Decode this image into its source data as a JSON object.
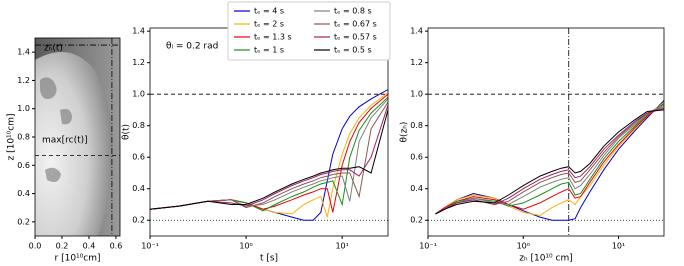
{
  "chart_data": [
    {
      "type": "image",
      "xlabel": "r [10¹⁰cm]",
      "ylabel": "z [10¹⁰cm]",
      "xlim": [
        0,
        0.63
      ],
      "ylim": [
        0.1,
        1.5
      ],
      "xticks": [
        {
          "value": 0,
          "label": "0.0"
        },
        0.2,
        0.4,
        0.6
      ],
      "yticks": [
        0.2,
        0.4,
        0.6,
        0.8,
        {
          "value": 1,
          "label": "1.0"
        },
        1.2,
        1.4
      ],
      "hlines": [
        {
          "value": 1.45,
          "style": "dashdot"
        },
        {
          "value": 0.67,
          "style": "dashed"
        }
      ],
      "vlines": [
        {
          "value": 0.57,
          "style": "dashdot"
        }
      ],
      "annotations": [
        "zₕ(t)",
        "max[rc(t)]"
      ]
    },
    {
      "type": "line",
      "log_x": true,
      "xlabel": "t [s]",
      "ylabel": "θ(t)",
      "xlim": [
        0.1,
        30
      ],
      "ylim": [
        0.1,
        1.42
      ],
      "xticks": [
        {
          "value": 0.1,
          "label": "10⁻¹"
        },
        {
          "value": 1,
          "label": "10⁰"
        },
        {
          "value": 10,
          "label": "10¹"
        }
      ],
      "yticks": [
        0.2,
        0.4,
        0.6,
        0.8,
        {
          "value": 1,
          "label": "1.0"
        },
        1.2,
        1.4
      ],
      "hlines": [
        {
          "value": 1,
          "style": "dashed"
        },
        {
          "value": 0.2,
          "style": "dotted"
        }
      ],
      "annotations": [
        "θₗ = 0.2 rad"
      ],
      "legend": "top",
      "x": [
        0.1,
        0.2,
        0.4,
        0.7,
        1,
        1.5,
        2,
        3,
        4,
        5,
        6,
        7,
        8,
        10,
        12,
        15,
        20,
        30
      ],
      "series": [
        {
          "name": "tₑ = 4 s",
          "color": "#0000cc",
          "values": [
            0.27,
            0.29,
            0.32,
            0.33,
            0.31,
            0.27,
            0.25,
            0.22,
            0.2,
            0.2,
            0.25,
            0.45,
            0.62,
            0.78,
            0.86,
            0.92,
            0.97,
            1.03
          ]
        },
        {
          "name": "tₑ = 2 s",
          "color": "#ffb000",
          "values": [
            0.27,
            0.29,
            0.32,
            0.33,
            0.31,
            0.27,
            0.25,
            0.24,
            0.3,
            0.33,
            0.35,
            0.22,
            0.4,
            0.62,
            0.75,
            0.85,
            0.93,
            1.01
          ]
        },
        {
          "name": "tₑ = 1.3 s",
          "color": "#e8000b",
          "values": [
            0.27,
            0.29,
            0.32,
            0.33,
            0.31,
            0.27,
            0.29,
            0.33,
            0.36,
            0.38,
            0.4,
            0.4,
            0.25,
            0.55,
            0.7,
            0.82,
            0.91,
            1.0
          ]
        },
        {
          "name": "tₑ = 1 s",
          "color": "#1a8f1a",
          "values": [
            0.27,
            0.29,
            0.32,
            0.33,
            0.31,
            0.26,
            0.3,
            0.35,
            0.38,
            0.41,
            0.43,
            0.44,
            0.45,
            0.3,
            0.6,
            0.77,
            0.88,
            0.98
          ]
        },
        {
          "name": "tₑ = 0.8 s",
          "color": "#808080",
          "values": [
            0.27,
            0.29,
            0.32,
            0.33,
            0.29,
            0.3,
            0.33,
            0.38,
            0.41,
            0.43,
            0.45,
            0.46,
            0.47,
            0.48,
            0.32,
            0.7,
            0.85,
            0.97
          ]
        },
        {
          "name": "tₑ = 0.67 s",
          "color": "#8c564b",
          "values": [
            0.27,
            0.29,
            0.32,
            0.33,
            0.28,
            0.31,
            0.35,
            0.4,
            0.43,
            0.45,
            0.47,
            0.48,
            0.49,
            0.5,
            0.5,
            0.35,
            0.78,
            0.95
          ]
        },
        {
          "name": "tₑ = 0.57 s",
          "color": "#a0206a",
          "values": [
            0.27,
            0.29,
            0.32,
            0.31,
            0.29,
            0.33,
            0.37,
            0.42,
            0.45,
            0.47,
            0.49,
            0.5,
            0.51,
            0.52,
            0.52,
            0.48,
            0.6,
            0.93
          ]
        },
        {
          "name": "tₑ = 0.5 s",
          "color": "#000000",
          "values": [
            0.27,
            0.29,
            0.32,
            0.3,
            0.3,
            0.34,
            0.38,
            0.43,
            0.46,
            0.48,
            0.5,
            0.51,
            0.52,
            0.53,
            0.53,
            0.54,
            0.5,
            0.9
          ]
        }
      ]
    },
    {
      "type": "line",
      "log_x": true,
      "xlabel": "zₕ [10¹⁰ cm]",
      "ylabel": "θ(zₕ)",
      "xlim": [
        0.1,
        30
      ],
      "ylim": [
        0.1,
        1.42
      ],
      "xticks": [
        {
          "value": 0.1,
          "label": "10⁻¹"
        },
        {
          "value": 1,
          "label": "10⁰"
        },
        {
          "value": 10,
          "label": "10¹"
        }
      ],
      "yticks": [
        0.2,
        0.4,
        0.6,
        0.8,
        {
          "value": 1,
          "label": "1.0"
        },
        1.2,
        1.4
      ],
      "hlines": [
        {
          "value": 1,
          "style": "dashed"
        },
        {
          "value": 0.2,
          "style": "dotted"
        }
      ],
      "vlines": [
        {
          "value": 3,
          "style": "dashdot"
        }
      ],
      "x": [
        0.12,
        0.15,
        0.2,
        0.3,
        0.5,
        0.7,
        1,
        1.5,
        2,
        2.5,
        3,
        3.5,
        4,
        5,
        7,
        10,
        15,
        20,
        30
      ],
      "series": [
        {
          "color": "#0000cc",
          "values": [
            0.24,
            0.28,
            0.33,
            0.37,
            0.34,
            0.3,
            0.26,
            0.22,
            0.2,
            0.2,
            0.2,
            0.21,
            0.28,
            0.38,
            0.52,
            0.65,
            0.77,
            0.85,
            0.96
          ]
        },
        {
          "color": "#ffb000",
          "values": [
            0.24,
            0.28,
            0.33,
            0.36,
            0.34,
            0.29,
            0.25,
            0.23,
            0.28,
            0.31,
            0.33,
            0.3,
            0.35,
            0.42,
            0.55,
            0.67,
            0.78,
            0.86,
            0.95
          ]
        },
        {
          "color": "#e8000b",
          "values": [
            0.24,
            0.28,
            0.32,
            0.35,
            0.33,
            0.3,
            0.27,
            0.31,
            0.35,
            0.38,
            0.4,
            0.34,
            0.35,
            0.44,
            0.57,
            0.68,
            0.79,
            0.86,
            0.94
          ]
        },
        {
          "color": "#1a8f1a",
          "values": [
            0.24,
            0.27,
            0.32,
            0.34,
            0.32,
            0.29,
            0.31,
            0.36,
            0.4,
            0.43,
            0.44,
            0.36,
            0.37,
            0.46,
            0.59,
            0.7,
            0.8,
            0.87,
            0.94
          ]
        },
        {
          "color": "#808080",
          "values": [
            0.24,
            0.27,
            0.31,
            0.34,
            0.31,
            0.3,
            0.35,
            0.41,
            0.44,
            0.46,
            0.47,
            0.4,
            0.42,
            0.49,
            0.61,
            0.72,
            0.81,
            0.88,
            0.93
          ]
        },
        {
          "color": "#8c564b",
          "values": [
            0.24,
            0.27,
            0.31,
            0.33,
            0.3,
            0.32,
            0.38,
            0.44,
            0.47,
            0.49,
            0.5,
            0.44,
            0.45,
            0.52,
            0.63,
            0.73,
            0.82,
            0.88,
            0.92
          ]
        },
        {
          "color": "#a0206a",
          "values": [
            0.24,
            0.27,
            0.31,
            0.33,
            0.3,
            0.34,
            0.4,
            0.46,
            0.49,
            0.51,
            0.52,
            0.47,
            0.48,
            0.54,
            0.65,
            0.74,
            0.83,
            0.88,
            0.91
          ]
        },
        {
          "color": "#000000",
          "values": [
            0.24,
            0.27,
            0.3,
            0.32,
            0.31,
            0.36,
            0.42,
            0.48,
            0.51,
            0.53,
            0.54,
            0.5,
            0.51,
            0.56,
            0.67,
            0.76,
            0.84,
            0.89,
            0.9
          ]
        }
      ]
    }
  ]
}
